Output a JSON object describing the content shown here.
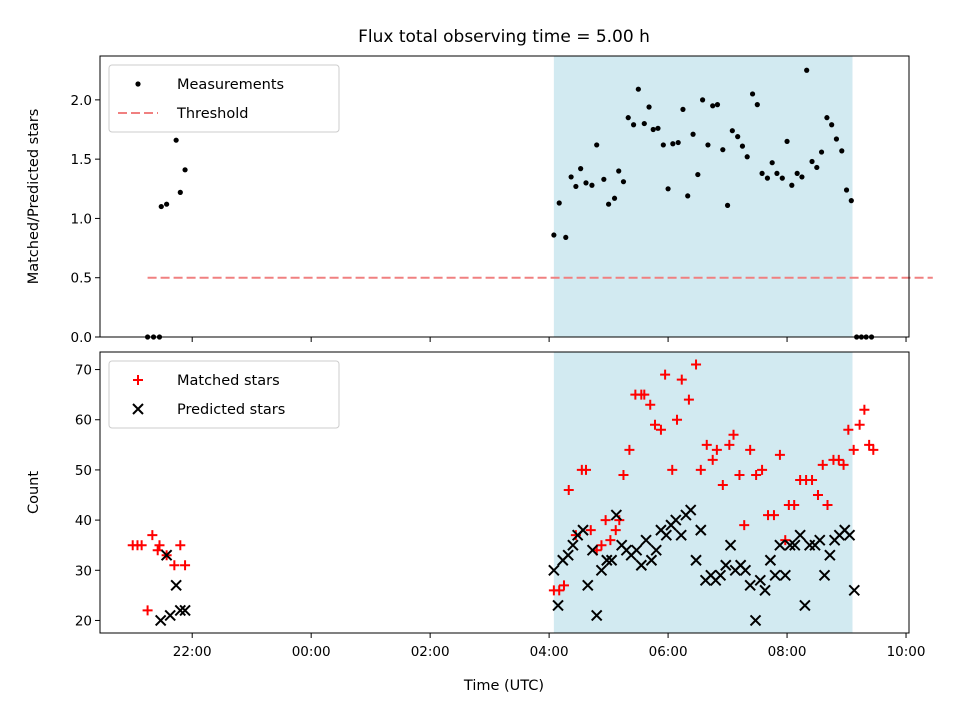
{
  "chart_data": {
    "title": "Flux total observing time = 5.00 h",
    "xlabel": "Time (UTC)",
    "x_unit": "hours (UTC), values > 24 fall after midnight",
    "xlim": [
      20.45,
      34.05
    ],
    "x_ticks": [
      {
        "value": 22,
        "label": "22:00"
      },
      {
        "value": 24,
        "label": "00:00"
      },
      {
        "value": 26,
        "label": "02:00"
      },
      {
        "value": 28,
        "label": "04:00"
      },
      {
        "value": 30,
        "label": "06:00"
      },
      {
        "value": 32,
        "label": "08:00"
      },
      {
        "value": 34,
        "label": "10:00"
      }
    ],
    "shaded_span": {
      "x0": 28.08,
      "x1": 33.1,
      "color": "#add8e6"
    },
    "panels": [
      {
        "type": "scatter",
        "ylabel": "Matched/Predicted stars",
        "ylim": [
          0,
          2.37
        ],
        "yticks": [
          0.0,
          0.5,
          1.0,
          1.5,
          2.0
        ],
        "ytick_labels": [
          "0.0",
          "0.5",
          "1.0",
          "1.5",
          "2.0"
        ],
        "legend": {
          "position": "upper-left",
          "entries": [
            "Measurements",
            "Threshold"
          ]
        },
        "threshold": {
          "name": "Threshold",
          "y": 0.5,
          "x0": 21.25,
          "x1": 34.45,
          "color": "#f08080"
        },
        "series": [
          {
            "name": "Measurements",
            "color": "#000000",
            "marker": "dot",
            "x": [
              21.25,
              21.35,
              21.45,
              21.48,
              21.57,
              21.73,
              21.8,
              21.88,
              28.08,
              28.17,
              28.28,
              28.37,
              28.45,
              28.53,
              28.62,
              28.72,
              28.8,
              28.92,
              29.0,
              29.1,
              29.17,
              29.25,
              29.33,
              29.42,
              29.5,
              29.6,
              29.68,
              29.75,
              29.83,
              29.92,
              30.0,
              30.08,
              30.17,
              30.25,
              30.33,
              30.42,
              30.5,
              30.58,
              30.67,
              30.75,
              30.83,
              30.92,
              31.0,
              31.08,
              31.17,
              31.25,
              31.33,
              31.42,
              31.5,
              31.58,
              31.67,
              31.75,
              31.83,
              31.92,
              32.0,
              32.08,
              32.17,
              32.25,
              32.33,
              32.42,
              32.5,
              32.58,
              32.67,
              32.75,
              32.83,
              32.92,
              33.0,
              33.08,
              33.17,
              33.25,
              33.33,
              33.42
            ],
            "y": [
              0.0,
              0.0,
              0.0,
              1.1,
              1.12,
              1.66,
              1.22,
              1.41,
              0.86,
              1.13,
              0.84,
              1.35,
              1.27,
              1.42,
              1.3,
              1.28,
              1.62,
              1.33,
              1.12,
              1.17,
              1.4,
              1.31,
              1.85,
              1.79,
              2.09,
              1.8,
              1.94,
              1.75,
              1.76,
              1.62,
              1.25,
              1.63,
              1.64,
              1.92,
              1.19,
              1.71,
              1.37,
              2.0,
              1.62,
              1.95,
              1.96,
              1.58,
              1.11,
              1.74,
              1.69,
              1.61,
              1.52,
              2.05,
              1.96,
              1.38,
              1.34,
              1.47,
              1.38,
              1.34,
              1.65,
              1.28,
              1.38,
              1.35,
              2.25,
              1.48,
              1.43,
              1.56,
              1.85,
              1.79,
              1.67,
              1.57,
              1.24,
              1.15,
              0.0,
              0.0,
              0.0,
              0.0
            ]
          }
        ]
      },
      {
        "type": "scatter",
        "ylabel": "Count",
        "ylim": [
          17.5,
          73.5
        ],
        "yticks": [
          20,
          30,
          40,
          50,
          60,
          70
        ],
        "ytick_labels": [
          "20",
          "30",
          "40",
          "50",
          "60",
          "70"
        ],
        "legend": {
          "position": "upper-left",
          "entries": [
            "Matched stars",
            "Predicted stars"
          ]
        },
        "series": [
          {
            "name": "Matched stars",
            "color": "#ff0000",
            "marker": "plus",
            "x": [
              21.0,
              21.08,
              21.15,
              21.25,
              21.33,
              21.42,
              21.45,
              21.57,
              21.7,
              21.8,
              21.88,
              28.08,
              28.17,
              28.25,
              28.33,
              28.45,
              28.55,
              28.62,
              28.7,
              28.8,
              28.88,
              28.95,
              29.03,
              29.12,
              29.18,
              29.25,
              29.35,
              29.45,
              29.55,
              29.6,
              29.7,
              29.78,
              29.88,
              29.95,
              30.07,
              30.15,
              30.23,
              30.35,
              30.47,
              30.55,
              30.65,
              30.75,
              30.82,
              30.92,
              31.03,
              31.1,
              31.2,
              31.28,
              31.38,
              31.48,
              31.58,
              31.68,
              31.78,
              31.88,
              31.97,
              32.03,
              32.12,
              32.22,
              32.32,
              32.42,
              32.52,
              32.6,
              32.68,
              32.78,
              32.87,
              32.95,
              33.03,
              33.12,
              33.22,
              33.3,
              33.38,
              33.45
            ],
            "y": [
              35,
              35,
              35,
              22,
              37,
              34,
              35,
              33,
              31,
              35,
              31,
              26,
              26,
              27,
              46,
              37,
              50,
              50,
              38,
              34,
              35,
              40,
              36,
              38,
              40,
              49,
              54,
              65,
              65,
              65,
              63,
              59,
              58,
              69,
              50,
              60,
              68,
              64,
              71,
              50,
              55,
              52,
              54,
              47,
              55,
              57,
              49,
              39,
              54,
              49,
              50,
              41,
              41,
              53,
              36,
              43,
              43,
              48,
              48,
              48,
              45,
              51,
              43,
              52,
              52,
              51,
              58,
              54,
              59,
              62,
              55,
              54
            ]
          },
          {
            "name": "Predicted stars",
            "color": "#000000",
            "marker": "x",
            "x": [
              21.47,
              21.57,
              21.63,
              21.73,
              21.8,
              21.88,
              28.08,
              28.15,
              28.23,
              28.32,
              28.4,
              28.48,
              28.57,
              28.65,
              28.73,
              28.8,
              28.88,
              28.97,
              29.05,
              29.13,
              29.22,
              29.3,
              29.38,
              29.47,
              29.55,
              29.63,
              29.72,
              29.8,
              29.88,
              29.97,
              30.05,
              30.13,
              30.22,
              30.3,
              30.38,
              30.47,
              30.55,
              30.63,
              30.72,
              30.8,
              30.88,
              30.97,
              31.05,
              31.13,
              31.22,
              31.3,
              31.38,
              31.47,
              31.55,
              31.63,
              31.72,
              31.8,
              31.88,
              31.97,
              32.05,
              32.13,
              32.22,
              32.3,
              32.38,
              32.47,
              32.55,
              32.63,
              32.72,
              32.8,
              32.88,
              32.97,
              33.05,
              33.13
            ],
            "y": [
              20,
              33,
              21,
              27,
              22,
              22,
              30,
              23,
              32,
              33,
              35,
              37,
              38,
              27,
              34,
              21,
              30,
              32,
              32,
              41,
              35,
              34,
              33,
              34,
              31,
              36,
              32,
              34,
              38,
              37,
              39,
              40,
              37,
              41,
              42,
              32,
              38,
              28,
              29,
              28,
              29,
              31,
              35,
              30,
              31,
              30,
              27,
              20,
              28,
              26,
              32,
              29,
              35,
              29,
              35,
              35,
              37,
              23,
              35,
              35,
              36,
              29,
              33,
              36,
              37,
              38,
              37,
              26
            ]
          }
        ]
      }
    ]
  }
}
